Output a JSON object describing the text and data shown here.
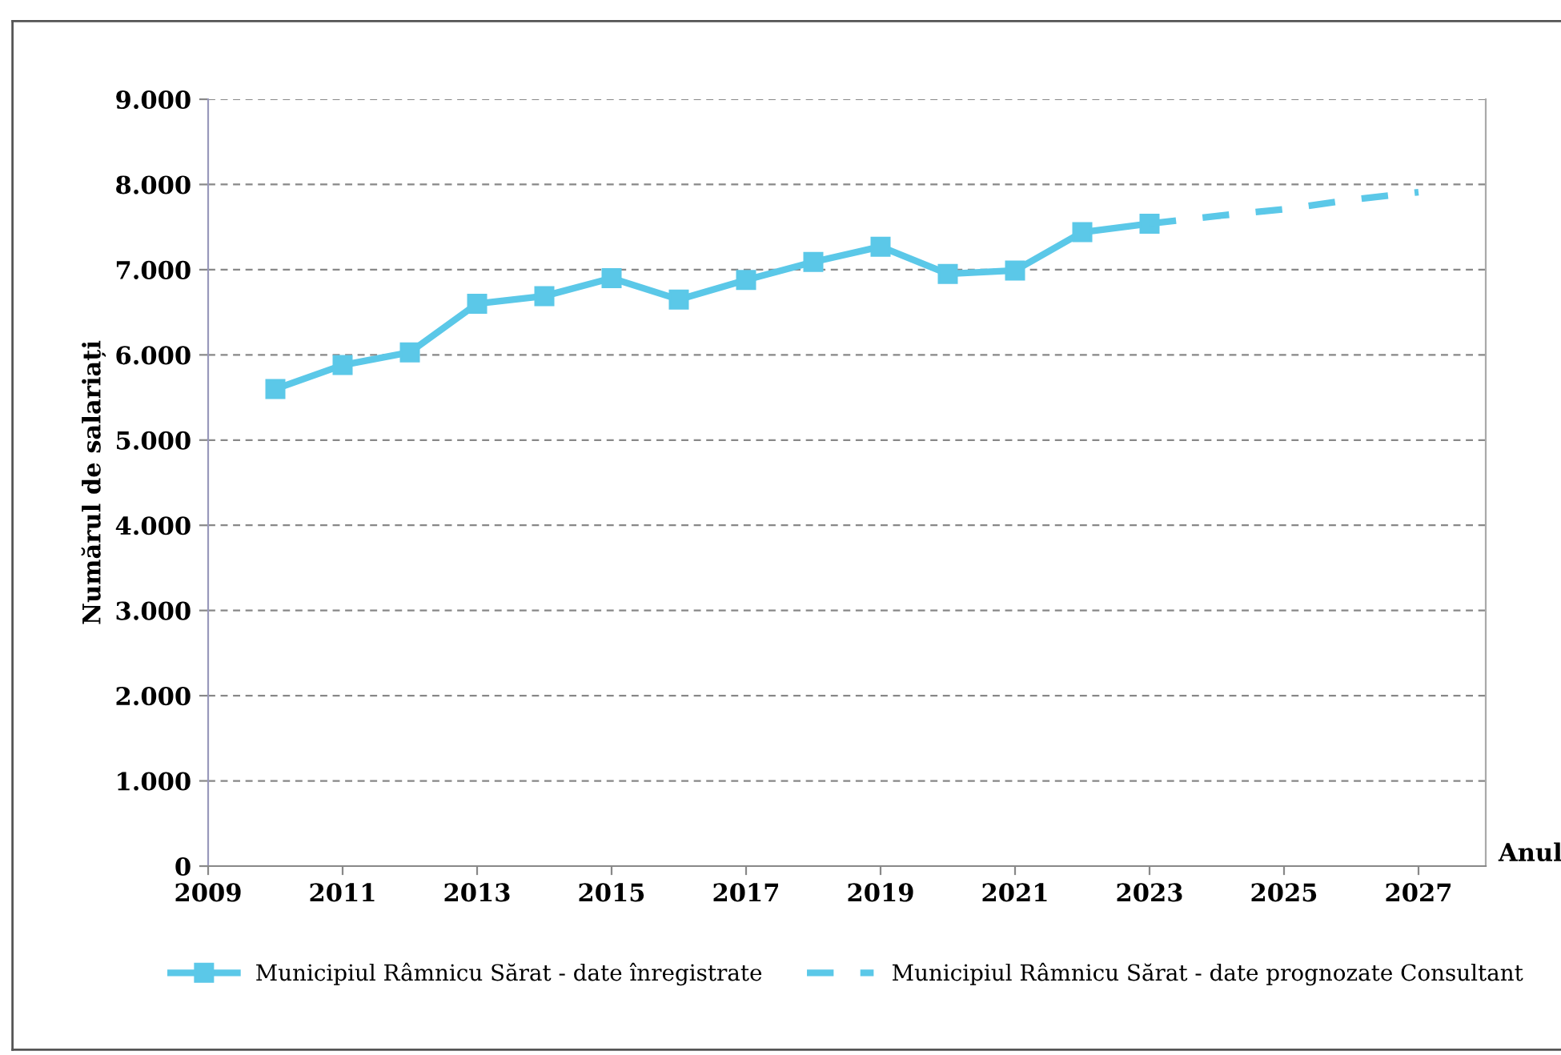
{
  "chart_data": {
    "type": "line",
    "ylabel": "Numărul de salariați",
    "xlabel": "Anul",
    "xlim": [
      2009,
      2028
    ],
    "xticks": [
      2009,
      2011,
      2013,
      2015,
      2017,
      2019,
      2021,
      2023,
      2025,
      2027
    ],
    "ylim": [
      0,
      9000
    ],
    "yticks": [
      {
        "value": 0,
        "label": "0"
      },
      {
        "value": 1000,
        "label": "1.000"
      },
      {
        "value": 2000,
        "label": "2.000"
      },
      {
        "value": 3000,
        "label": "3.000"
      },
      {
        "value": 4000,
        "label": "4.000"
      },
      {
        "value": 5000,
        "label": "5.000"
      },
      {
        "value": 6000,
        "label": "6.000"
      },
      {
        "value": 7000,
        "label": "7.000"
      },
      {
        "value": 8000,
        "label": "8.000"
      },
      {
        "value": 9000,
        "label": "9.000"
      }
    ],
    "grid": "y",
    "legend": "bottom",
    "series": [
      {
        "name": "Municipiul Râmnicu Sărat - date înregistrate",
        "color": "#5bc8e8",
        "marker": "square",
        "line_style": "solid",
        "x": [
          2010,
          2011,
          2012,
          2013,
          2014,
          2015,
          2016,
          2017,
          2018,
          2019,
          2020,
          2021,
          2022,
          2023
        ],
        "values": [
          5600,
          5880,
          6030,
          6600,
          6690,
          6900,
          6650,
          6880,
          7090,
          7270,
          6950,
          6990,
          7440,
          7540
        ]
      },
      {
        "name": "Municipiul Râmnicu Sărat - date prognozate Consultant",
        "color": "#5bc8e8",
        "marker": "none",
        "line_style": "dashed",
        "x": [
          2023,
          2024,
          2025,
          2026,
          2027
        ],
        "values": [
          7540,
          7630,
          7710,
          7820,
          7910
        ]
      }
    ]
  }
}
